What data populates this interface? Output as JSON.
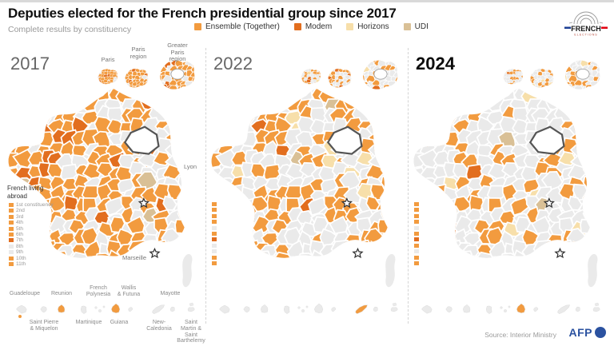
{
  "header": {
    "title": "Deputies elected for the French presidential group since 2017",
    "subtitle": "Complete results by constituency",
    "legend": [
      {
        "label": "Ensemble (Together)",
        "key": "ensemble"
      },
      {
        "label": "Modem",
        "key": "modem"
      },
      {
        "label": "Horizons",
        "key": "horizons"
      },
      {
        "label": "UDI",
        "key": "udi"
      }
    ],
    "logo": {
      "line1": "FRENCH",
      "line2": "ELECTIONS"
    }
  },
  "palette": {
    "ensemble": "#F29B3F",
    "modem": "#E26E1F",
    "horizons": "#F7DFAA",
    "udi": "#D9C096",
    "none": "#EAEAEA",
    "flag_blue": "#1C3F94",
    "flag_red": "#E1000F",
    "afp_blue": "#2B52A0"
  },
  "panels": [
    {
      "year": "2017",
      "year_bold": false,
      "seed": 11,
      "show_labels": true,
      "mix": {
        "ensemble": 0.62,
        "modem": 0.08,
        "horizons": 0.0,
        "udi": 0.01
      },
      "inset_mix": {
        "ensemble": 0.75,
        "modem": 0.12,
        "horizons": 0.0,
        "udi": 0.0
      },
      "abroad_results": [
        "ensemble",
        "ensemble",
        "ensemble",
        "ensemble",
        "ensemble",
        "ensemble",
        "modem",
        "none",
        "none",
        "ensemble",
        "ensemble"
      ],
      "territory_colors": [
        "none",
        "none",
        "ensemble",
        "none",
        "none",
        "ensemble",
        "none",
        "none",
        "none",
        "none"
      ],
      "territory_dots": [
        0
      ]
    },
    {
      "year": "2022",
      "year_bold": false,
      "seed": 22,
      "show_labels": false,
      "mix": {
        "ensemble": 0.4,
        "modem": 0.02,
        "horizons": 0.04,
        "udi": 0.005
      },
      "inset_mix": {
        "ensemble": 0.45,
        "modem": 0.04,
        "horizons": 0.04,
        "udi": 0.0
      },
      "abroad_results": [
        "ensemble",
        "ensemble",
        "ensemble",
        "ensemble",
        "none",
        "ensemble",
        "modem",
        "none",
        "none",
        "ensemble",
        "ensemble"
      ],
      "territory_colors": [
        "none",
        "none",
        "none",
        "none",
        "none",
        "none",
        "none",
        "ensemble",
        "none",
        "none"
      ],
      "territory_dots": []
    },
    {
      "year": "2024",
      "year_bold": true,
      "seed": 33,
      "show_labels": false,
      "mix": {
        "ensemble": 0.3,
        "modem": 0.015,
        "horizons": 0.045,
        "udi": 0.005
      },
      "inset_mix": {
        "ensemble": 0.4,
        "modem": 0.03,
        "horizons": 0.05,
        "udi": 0.0
      },
      "abroad_results": [
        "ensemble",
        "ensemble",
        "ensemble",
        "ensemble",
        "none",
        "ensemble",
        "modem",
        "ensemble",
        "none",
        "ensemble",
        "ensemble"
      ],
      "territory_colors": [
        "none",
        "none",
        "none",
        "none",
        "none",
        "ensemble",
        "none",
        "none",
        "none",
        "none"
      ],
      "territory_dots": []
    }
  ],
  "map_labels": {
    "paris": "Paris",
    "paris_region": "Paris\nregion",
    "greater_paris": "Greater Paris\nregion",
    "lyon": "Lyon",
    "marseille": "Marseille"
  },
  "abroad": {
    "title": "French living\nabroad",
    "items": [
      "1st constituency",
      "2nd",
      "3rd",
      "4th",
      "5th",
      "6th",
      "7th",
      "8th",
      "9th",
      "10th",
      "11th"
    ]
  },
  "territories": {
    "names": [
      "Guadeloupe",
      "Saint Pierre\n& Miquelon",
      "Reunion",
      "Martinique",
      "French\nPolynesia",
      "Guiana",
      "Wallis\n& Futuna",
      "New-\nCaledonia",
      "Mayotte",
      "Saint Martin &\nSaint Barthelemy"
    ]
  },
  "footer": {
    "source": "Source: Interior Ministry",
    "afp": "AFP"
  }
}
